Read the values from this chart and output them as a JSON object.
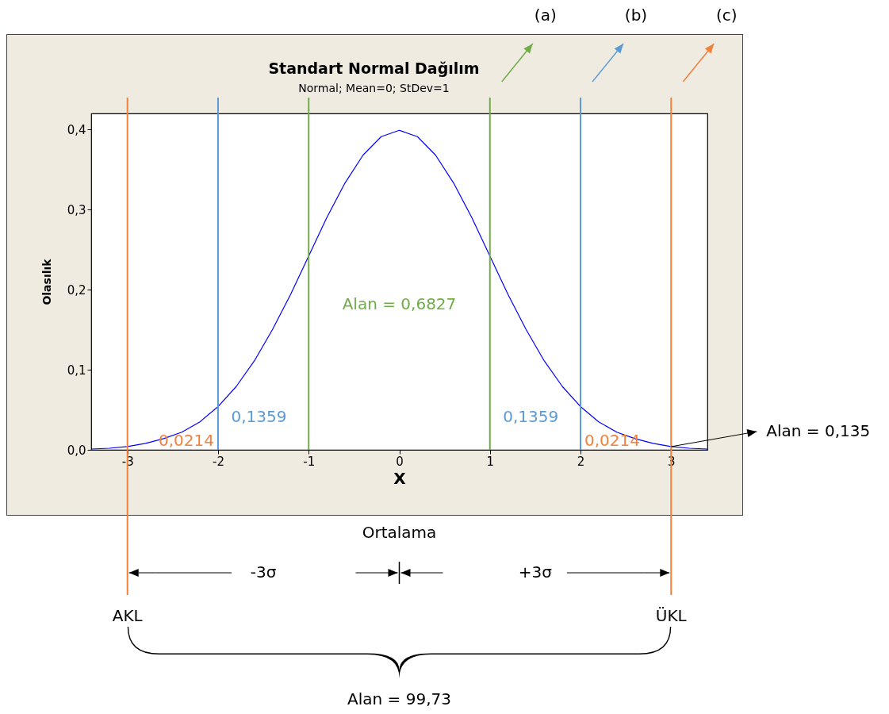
{
  "chart_data": {
    "type": "line",
    "title": "Standart Normal Dağılım",
    "subtitle": "Normal; Mean=0; StDev=1",
    "xlabel": "X",
    "ylabel": "Olasılık",
    "x": [
      -3.4,
      -3.2,
      -3.0,
      -2.8,
      -2.6,
      -2.4,
      -2.2,
      -2.0,
      -1.8,
      -1.6,
      -1.4,
      -1.2,
      -1.0,
      -0.8,
      -0.6,
      -0.4,
      -0.2,
      0,
      0.2,
      0.4,
      0.6,
      0.8,
      1.0,
      1.2,
      1.4,
      1.6,
      1.8,
      2.0,
      2.2,
      2.4,
      2.6,
      2.8,
      3.0,
      3.2,
      3.4
    ],
    "series": [
      {
        "color": "#0000ff",
        "values": [
          0.001,
          0.002,
          0.004,
          0.008,
          0.014,
          0.022,
          0.035,
          0.054,
          0.079,
          0.111,
          0.15,
          0.194,
          0.242,
          0.29,
          0.333,
          0.368,
          0.391,
          0.399,
          0.391,
          0.368,
          0.333,
          0.29,
          0.242,
          0.194,
          0.15,
          0.111,
          0.079,
          0.054,
          0.035,
          0.022,
          0.014,
          0.008,
          0.004,
          0.002,
          0.001
        ]
      }
    ],
    "xlim": [
      -3.4,
      3.4
    ],
    "ylim": [
      0,
      0.42
    ],
    "xticks": [
      -3,
      -2,
      -1,
      0,
      1,
      2,
      3
    ],
    "yticks": [
      {
        "value": 0,
        "label": "0,0"
      },
      {
        "value": 0.1,
        "label": "0,1"
      },
      {
        "value": 0.2,
        "label": "0,2"
      },
      {
        "value": 0.3,
        "label": "0,3"
      },
      {
        "value": 0.4,
        "label": "0,4"
      }
    ],
    "marker": "none",
    "line_style": "solid",
    "ref_lines": [
      {
        "axis": "x",
        "value": -1,
        "label": null,
        "color": "#70ad47"
      },
      {
        "axis": "x",
        "value": 1,
        "label": null,
        "color": "#70ad47"
      },
      {
        "axis": "x",
        "value": -2,
        "label": null,
        "color": "#5b9bd5"
      },
      {
        "axis": "x",
        "value": 2,
        "label": null,
        "color": "#5b9bd5"
      },
      {
        "axis": "x",
        "value": -3,
        "label": "AKL",
        "color": "#f0823c"
      },
      {
        "axis": "x",
        "value": 3,
        "label": "ÜKL",
        "color": "#f0823c"
      }
    ],
    "annotations": [
      "Alan = 0,6827",
      "0,1359",
      "0,1359",
      "0,0214",
      "0,0214",
      {
        "text": "Alan = 0,135",
        "x": 3,
        "y": 0.004
      },
      "(a)",
      "(b)",
      "(c)",
      "Ortalama",
      "-3σ",
      "+3σ",
      "Alan = 99,73"
    ]
  }
}
